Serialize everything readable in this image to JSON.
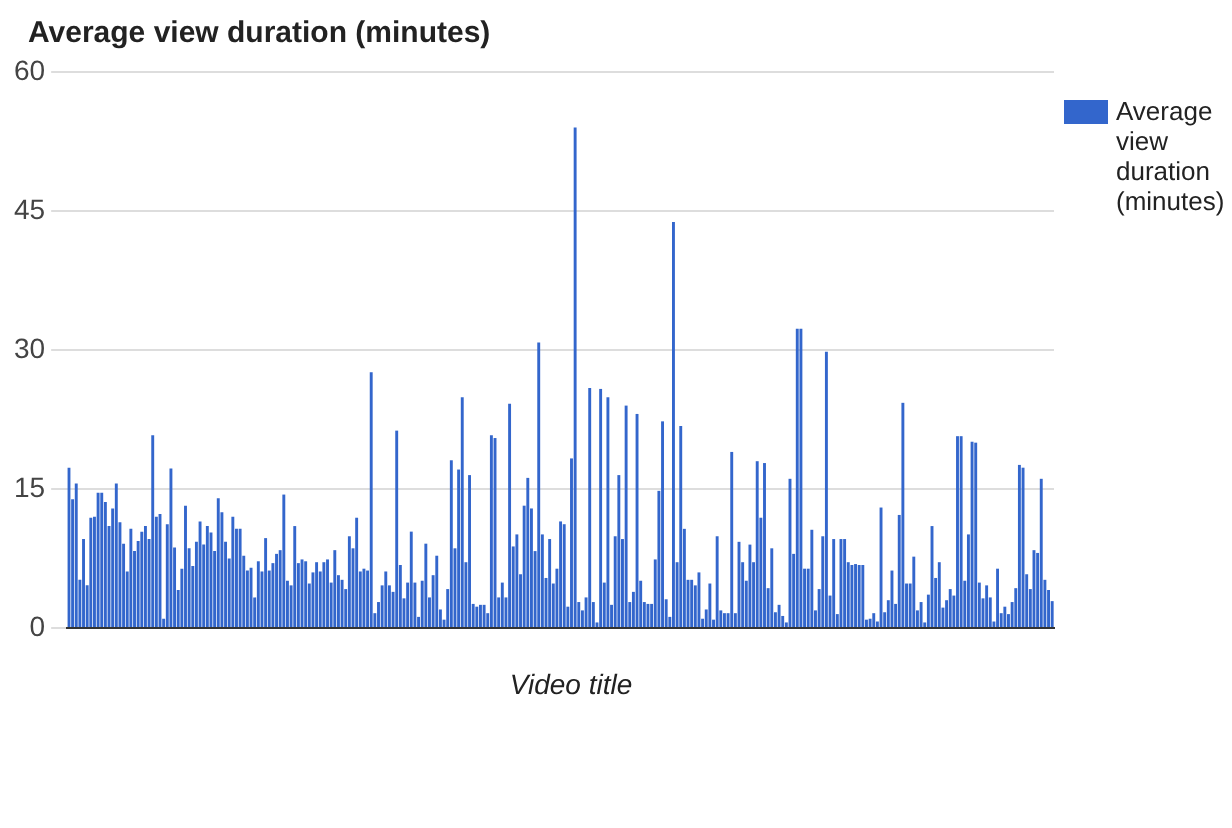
{
  "chart_data": {
    "type": "bar",
    "title": "Average view duration (minutes)",
    "xlabel": "Video title",
    "categories": [
      null,
      null,
      null,
      null,
      null,
      null,
      null,
      null,
      null,
      null,
      null,
      null,
      null,
      null,
      null,
      null,
      null,
      null,
      null,
      null,
      null,
      null,
      null,
      null,
      null,
      null,
      null,
      null,
      null,
      null,
      null,
      null,
      null,
      null,
      null,
      null,
      null,
      null,
      null,
      null,
      null,
      null,
      null,
      null,
      null,
      null,
      null,
      null,
      null,
      null,
      null,
      null,
      null,
      null,
      null,
      null,
      null,
      null,
      null,
      null,
      null,
      null,
      null,
      null,
      null,
      null,
      null,
      null,
      null,
      null,
      null,
      null,
      null,
      null,
      null,
      null,
      null,
      null,
      null,
      null,
      null,
      null,
      null,
      null,
      null,
      null,
      null,
      null,
      null,
      null,
      null,
      null,
      null,
      null,
      null,
      null,
      null,
      null,
      null,
      null,
      null,
      null,
      null,
      null,
      null,
      null,
      null,
      null,
      null,
      null,
      null,
      null,
      null,
      null,
      null,
      null,
      null,
      null,
      null,
      null,
      null,
      null,
      null,
      null,
      null,
      null,
      null,
      null,
      null,
      null,
      null,
      null,
      null,
      null,
      null,
      null,
      null,
      null,
      null,
      null,
      null,
      null,
      null,
      null,
      null,
      null,
      null,
      null,
      null,
      null,
      null,
      null,
      null,
      null,
      null,
      null,
      null,
      null,
      null,
      null,
      null,
      null,
      null,
      null,
      null,
      null,
      null,
      null,
      null,
      null,
      null,
      null,
      null,
      null,
      null,
      null,
      null,
      null,
      null,
      null,
      null,
      null,
      null,
      null,
      null,
      null,
      null,
      null,
      null,
      null,
      null,
      null,
      null,
      null,
      null,
      null,
      null,
      null,
      null,
      null,
      null,
      null,
      null,
      null,
      null,
      null,
      null,
      null,
      null,
      null,
      null,
      null,
      null,
      null,
      null,
      null,
      null,
      null,
      null,
      null,
      null,
      null,
      null,
      null,
      null,
      null,
      null,
      null,
      null,
      null,
      null,
      null,
      null,
      null,
      null,
      null,
      null,
      null,
      null,
      null,
      null,
      null,
      null,
      null,
      null,
      null,
      null,
      null,
      null,
      null,
      null,
      null,
      null,
      null,
      null,
      null,
      null,
      null,
      null,
      null,
      null,
      null,
      null,
      null,
      null,
      null,
      null,
      null,
      null,
      null,
      null
    ],
    "series": [
      {
        "name": "Average view duration (minutes)",
        "color": "#3366cc",
        "values": [
          17.3,
          13.9,
          15.6,
          5.2,
          9.6,
          4.6,
          11.9,
          12,
          14.6,
          14.6,
          13.6,
          11,
          12.9,
          15.6,
          11.4,
          9.1,
          6.1,
          10.7,
          8.3,
          9.4,
          10.4,
          11,
          9.6,
          20.8,
          12,
          12.3,
          1,
          11.2,
          17.2,
          8.7,
          4.1,
          6.4,
          13.2,
          8.6,
          6.7,
          9.3,
          11.5,
          9,
          11,
          10.3,
          8.3,
          14,
          12.5,
          9.3,
          7.5,
          12,
          10.7,
          10.7,
          7.8,
          6.2,
          6.5,
          3.3,
          7.2,
          6.1,
          9.7,
          6.2,
          7,
          8,
          8.4,
          14.4,
          5.1,
          4.6,
          11,
          7,
          7.4,
          7.2,
          4.8,
          6,
          7.1,
          6.1,
          7.1,
          7.4,
          4.9,
          8.4,
          5.7,
          5.2,
          4.2,
          9.9,
          8.6,
          11.9,
          6.1,
          6.4,
          6.2,
          27.6,
          1.6,
          2.8,
          4.6,
          6.1,
          4.6,
          3.9,
          21.3,
          6.8,
          3.2,
          4.9,
          10.4,
          4.9,
          1.2,
          5.1,
          9.1,
          3.3,
          5.7,
          7.8,
          2,
          0.9,
          4.2,
          18.1,
          8.6,
          17.1,
          24.9,
          7.1,
          16.5,
          2.6,
          2.3,
          2.5,
          2.5,
          1.6,
          20.8,
          20.5,
          3.3,
          4.9,
          3.3,
          24.2,
          8.8,
          10.1,
          5.8,
          13.2,
          16.2,
          12.9,
          8.3,
          30.8,
          10.1,
          5.4,
          9.6,
          4.8,
          6.4,
          11.5,
          11.2,
          2.3,
          18.3,
          54,
          2.8,
          1.9,
          3.3,
          25.9,
          2.8,
          0.6,
          25.8,
          4.9,
          24.9,
          2.5,
          9.9,
          16.5,
          9.6,
          24,
          2.8,
          3.9,
          23.1,
          5.1,
          2.8,
          2.6,
          2.6,
          7.4,
          14.8,
          22.3,
          3.1,
          1.2,
          43.8,
          7.1,
          21.8,
          10.7,
          5.2,
          5.2,
          4.6,
          6,
          1,
          2,
          4.8,
          0.9,
          9.9,
          1.9,
          1.6,
          1.6,
          19,
          1.6,
          9.3,
          7.1,
          5.1,
          9,
          7.1,
          18,
          11.9,
          17.8,
          4.3,
          8.6,
          1.7,
          2.5,
          1.3,
          0.6,
          16.1,
          8,
          32.3,
          32.3,
          6.4,
          6.4,
          10.6,
          1.9,
          4.2,
          9.9,
          29.8,
          3.5,
          9.6,
          1.5,
          9.6,
          9.6,
          7.1,
          6.8,
          6.9,
          6.8,
          6.8,
          0.9,
          1,
          1.6,
          0.7,
          13,
          1.7,
          3,
          6.2,
          2.6,
          12.2,
          24.3,
          4.8,
          4.8,
          7.7,
          1.9,
          2.8,
          0.6,
          3.6,
          11,
          5.4,
          7.1,
          2.2,
          3,
          4.2,
          3.5,
          20.7,
          20.7,
          5.1,
          10.1,
          20.1,
          20,
          4.9,
          3.2,
          4.6,
          3.3,
          0.7,
          6.4,
          1.6,
          2.3,
          1.5,
          2.8,
          4.3,
          17.6,
          17.3,
          5.8,
          4.2,
          8.4,
          8.1,
          16.1,
          5.2,
          4.1,
          2.9
        ]
      }
    ],
    "ylim": [
      0,
      60
    ],
    "yticks": [
      0,
      15,
      30,
      45,
      60
    ],
    "grid": "y",
    "legend": "right"
  }
}
